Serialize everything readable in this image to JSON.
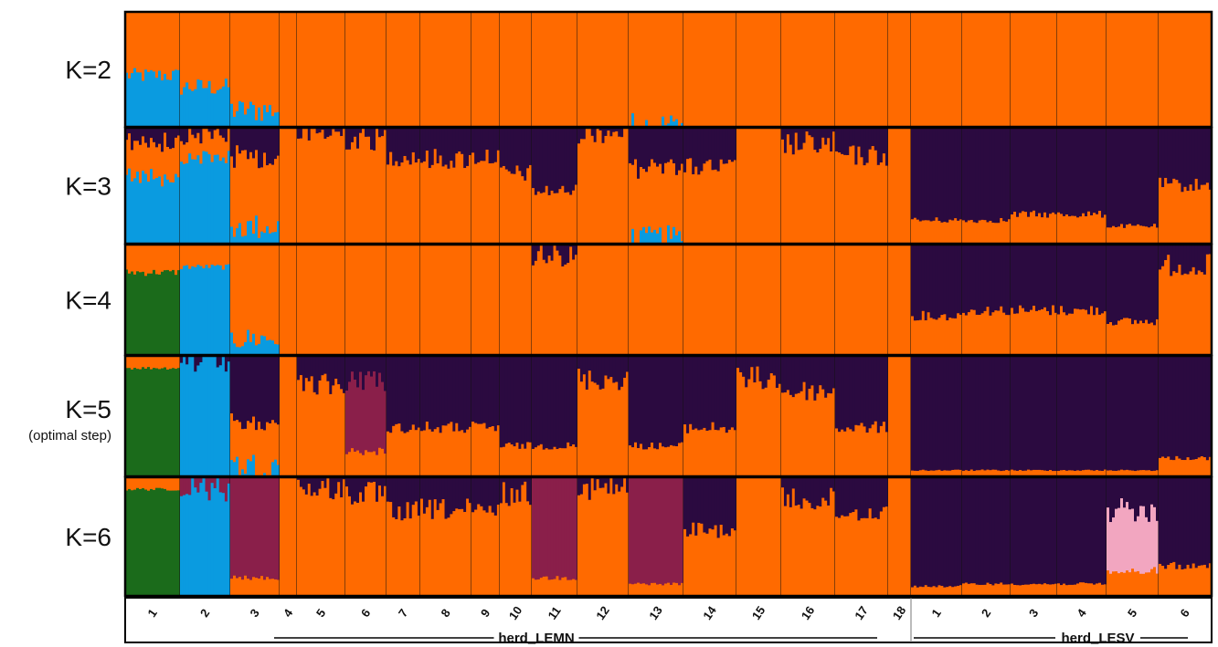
{
  "chart_data": {
    "type": "bar",
    "colors": {
      "orange": "#ff6a00",
      "blue": "#0a9be0",
      "purple": "#2b0a40",
      "green": "#1b6b1b",
      "magenta": "#8a1f4a",
      "pink": "#f2a6c0"
    },
    "groups": [
      {
        "name": "herd_LEMN",
        "populations": [
          "1",
          "2",
          "3",
          "4",
          "5",
          "6",
          "7",
          "8",
          "9",
          "10",
          "11",
          "12",
          "13",
          "14",
          "15",
          "16",
          "17",
          "18"
        ]
      },
      {
        "name": "herd_LESV",
        "populations": [
          "1",
          "2",
          "3",
          "4",
          "5",
          "6"
        ]
      }
    ],
    "panels": [
      {
        "k_label": "K=2",
        "note": "",
        "mean_membership": {
          "LEMN": [
            {
              "orange": 0.55,
              "blue": 0.45
            },
            {
              "orange": 0.65,
              "blue": 0.35
            },
            {
              "orange": 0.85,
              "blue": 0.15
            },
            {
              "orange": 1
            },
            {
              "orange": 1
            },
            {
              "orange": 1
            },
            {
              "orange": 1
            },
            {
              "orange": 1
            },
            {
              "orange": 1
            },
            {
              "orange": 1
            },
            {
              "orange": 1
            },
            {
              "orange": 1
            },
            {
              "orange": 0.98,
              "blue": 0.02
            },
            {
              "orange": 1
            },
            {
              "orange": 1
            },
            {
              "orange": 1
            },
            {
              "orange": 1
            },
            {
              "orange": 1
            }
          ],
          "LESV": [
            {
              "orange": 1
            },
            {
              "orange": 1
            },
            {
              "orange": 1
            },
            {
              "orange": 1
            },
            {
              "orange": 1
            },
            {
              "orange": 1
            }
          ]
        }
      },
      {
        "k_label": "K=3",
        "note": "",
        "mean_membership": {
          "LEMN": [
            {
              "orange": 0.3,
              "blue": 0.6,
              "purple": 0.1
            },
            {
              "orange": 0.2,
              "blue": 0.75,
              "purple": 0.05
            },
            {
              "orange": 0.6,
              "blue": 0.15,
              "purple": 0.25
            },
            {
              "orange": 1
            },
            {
              "orange": 0.95,
              "purple": 0.05
            },
            {
              "orange": 0.9,
              "purple": 0.1
            },
            {
              "orange": 0.75,
              "purple": 0.25
            },
            {
              "orange": 0.72,
              "purple": 0.28
            },
            {
              "orange": 0.75,
              "purple": 0.25
            },
            {
              "orange": 0.6,
              "purple": 0.4
            },
            {
              "orange": 0.45,
              "purple": 0.55
            },
            {
              "orange": 0.97,
              "purple": 0.03
            },
            {
              "orange": 0.6,
              "purple": 0.35,
              "blue": 0.05
            },
            {
              "orange": 0.65,
              "purple": 0.35
            },
            {
              "orange": 1
            },
            {
              "orange": 0.85,
              "purple": 0.15
            },
            {
              "orange": 0.75,
              "purple": 0.25
            },
            {
              "orange": 1
            }
          ],
          "LESV": [
            {
              "orange": 0.2,
              "purple": 0.8
            },
            {
              "orange": 0.2,
              "purple": 0.8
            },
            {
              "orange": 0.25,
              "purple": 0.75
            },
            {
              "orange": 0.25,
              "purple": 0.75
            },
            {
              "orange": 0.15,
              "purple": 0.85
            },
            {
              "orange": 0.5,
              "purple": 0.5
            }
          ]
        }
      },
      {
        "k_label": "K=4",
        "note": "",
        "mean_membership": {
          "LEMN": [
            {
              "orange": 0.25,
              "green": 0.75
            },
            {
              "orange": 0.2,
              "blue": 0.8
            },
            {
              "orange": 0.85,
              "blue": 0.15
            },
            {
              "orange": 1
            },
            {
              "orange": 1
            },
            {
              "orange": 1
            },
            {
              "orange": 1
            },
            {
              "orange": 1
            },
            {
              "orange": 1
            },
            {
              "orange": 1
            },
            {
              "orange": 0.9,
              "purple": 0.1
            },
            {
              "orange": 1
            },
            {
              "orange": 1
            },
            {
              "orange": 1
            },
            {
              "orange": 1
            },
            {
              "orange": 1
            },
            {
              "orange": 1
            },
            {
              "orange": 1
            }
          ],
          "LESV": [
            {
              "orange": 0.35,
              "purple": 0.65
            },
            {
              "orange": 0.4,
              "purple": 0.6
            },
            {
              "orange": 0.4,
              "purple": 0.6
            },
            {
              "orange": 0.4,
              "purple": 0.6
            },
            {
              "orange": 0.3,
              "purple": 0.7
            },
            {
              "orange": 0.8,
              "purple": 0.2
            }
          ]
        }
      },
      {
        "k_label": "K=5",
        "note": "(optimal step)",
        "mean_membership": {
          "LEMN": [
            {
              "orange": 0.1,
              "green": 0.9
            },
            {
              "blue": 0.95,
              "purple": 0.05
            },
            {
              "orange": 0.35,
              "blue": 0.1,
              "purple": 0.55
            },
            {
              "orange": 1
            },
            {
              "orange": 0.75,
              "purple": 0.25
            },
            {
              "orange": 0.2,
              "magenta": 0.6,
              "purple": 0.2
            },
            {
              "orange": 0.4,
              "purple": 0.6
            },
            {
              "orange": 0.4,
              "purple": 0.6
            },
            {
              "orange": 0.4,
              "purple": 0.6
            },
            {
              "orange": 0.25,
              "purple": 0.75
            },
            {
              "orange": 0.25,
              "purple": 0.75
            },
            {
              "orange": 0.8,
              "purple": 0.2
            },
            {
              "orange": 0.25,
              "purple": 0.75
            },
            {
              "orange": 0.4,
              "purple": 0.6
            },
            {
              "orange": 0.8,
              "purple": 0.2
            },
            {
              "orange": 0.7,
              "purple": 0.3
            },
            {
              "orange": 0.4,
              "purple": 0.6
            },
            {
              "orange": 1
            }
          ],
          "LESV": [
            {
              "orange": 0.05,
              "purple": 0.95
            },
            {
              "orange": 0.05,
              "purple": 0.95
            },
            {
              "orange": 0.05,
              "purple": 0.95
            },
            {
              "orange": 0.05,
              "purple": 0.95
            },
            {
              "orange": 0.05,
              "purple": 0.95
            },
            {
              "orange": 0.15,
              "purple": 0.85
            }
          ]
        }
      },
      {
        "k_label": "K=6",
        "note": "",
        "mean_membership": {
          "LEMN": [
            {
              "orange": 0.1,
              "green": 0.9
            },
            {
              "blue": 0.9,
              "magenta": 0.1
            },
            {
              "orange": 0.15,
              "magenta": 0.85
            },
            {
              "orange": 1
            },
            {
              "orange": 0.9,
              "purple": 0.1
            },
            {
              "orange": 0.85,
              "purple": 0.15
            },
            {
              "orange": 0.7,
              "purple": 0.3
            },
            {
              "orange": 0.72,
              "purple": 0.28
            },
            {
              "orange": 0.7,
              "purple": 0.3
            },
            {
              "orange": 0.85,
              "purple": 0.15
            },
            {
              "orange": 0.15,
              "magenta": 0.85
            },
            {
              "orange": 0.9,
              "purple": 0.1
            },
            {
              "orange": 0.1,
              "magenta": 0.9
            },
            {
              "orange": 0.55,
              "purple": 0.45
            },
            {
              "orange": 1
            },
            {
              "orange": 0.8,
              "purple": 0.2
            },
            {
              "orange": 0.7,
              "purple": 0.3
            },
            {
              "orange": 1
            }
          ],
          "LESV": [
            {
              "orange": 0.08,
              "purple": 0.92
            },
            {
              "orange": 0.1,
              "purple": 0.9
            },
            {
              "orange": 0.1,
              "purple": 0.9
            },
            {
              "orange": 0.1,
              "purple": 0.9
            },
            {
              "orange": 0.2,
              "pink": 0.5,
              "purple": 0.3
            },
            {
              "orange": 0.25,
              "purple": 0.75
            }
          ]
        }
      }
    ]
  }
}
